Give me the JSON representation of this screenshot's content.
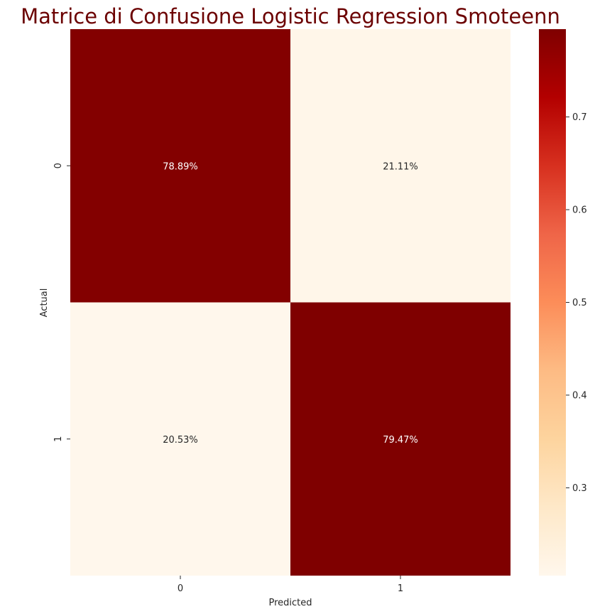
{
  "chart_data": {
    "type": "heatmap",
    "title": "Matrice di Confusione Logistic Regression Smoteenn",
    "xlabel": "Predicted",
    "ylabel": "Actual",
    "x_categories": [
      "0",
      "1"
    ],
    "y_categories": [
      "0",
      "1"
    ],
    "values": [
      [
        0.7889,
        0.2111
      ],
      [
        0.2053,
        0.7947
      ]
    ],
    "cell_labels": [
      [
        "78.89%",
        "21.11%"
      ],
      [
        "20.53%",
        "79.47%"
      ]
    ],
    "colormap": "OrRd",
    "colorbar": {
      "vmin": 0.2053,
      "vmax": 0.7947,
      "ticks": [
        0.3,
        0.4,
        0.5,
        0.6,
        0.7
      ],
      "tick_labels": [
        "0.3",
        "0.4",
        "0.5",
        "0.6",
        "0.7"
      ]
    },
    "colors": {
      "title": "#6b0000",
      "annotation_on_dark": "#ffffff",
      "annotation_on_light": "#262626",
      "text": "#262626"
    }
  }
}
